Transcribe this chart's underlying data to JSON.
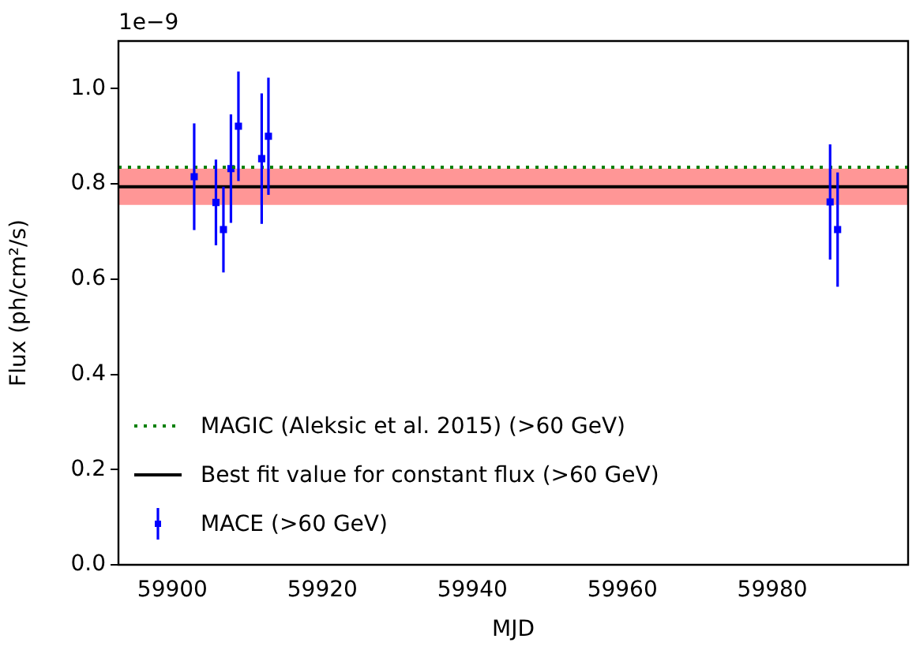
{
  "chart_data": {
    "type": "scatter",
    "xlabel": "MJD",
    "ylabel": "Flux (ph/cm²/s)",
    "xlim": [
      59892.8,
      59998.1
    ],
    "xticks": [
      59900,
      59920,
      59940,
      59960,
      59980
    ],
    "ylim": [
      0,
      1.1
    ],
    "yticks": [
      {
        "value": 0,
        "label": "0.0"
      },
      {
        "value": 0.2,
        "label": "0.2"
      },
      {
        "value": 0.4,
        "label": "0.4"
      },
      {
        "value": 0.6,
        "label": "0.6"
      },
      {
        "value": 0.8,
        "label": "0.8"
      },
      {
        "value": 1.0,
        "label": "1.0"
      }
    ],
    "annotations": [
      "1e−9"
    ],
    "legend": "bottom left",
    "grid": false,
    "bands": [
      {
        "axis": "y",
        "from": 0.756,
        "to": 0.832,
        "color": "#ff9696"
      }
    ],
    "series": [
      {
        "name": "MAGIC (Aleksic et al. 2015) (>60 GeV)",
        "type": "line",
        "color": "#008000",
        "line_style": "dotted",
        "marker": "none",
        "x": [
          59892.8,
          59998.1
        ],
        "values": [
          0.835,
          0.835
        ]
      },
      {
        "name": "Best fit value for constant flux (>60 GeV)",
        "type": "line",
        "color": "#000000",
        "line_style": "solid",
        "marker": "none",
        "x": [
          59892.8,
          59998.1
        ],
        "values": [
          0.794,
          0.794
        ]
      },
      {
        "name": "MACE (>60 GeV)",
        "type": "scatter",
        "color": "#0000ff",
        "marker": "square",
        "x": [
          59902.9,
          59905.8,
          59906.8,
          59907.8,
          59908.8,
          59911.9,
          59912.8,
          59987.7,
          59988.7
        ],
        "values": [
          0.815,
          0.761,
          0.704,
          0.832,
          0.921,
          0.853,
          0.9,
          0.762,
          0.704
        ],
        "errors": [
          0.112,
          0.09,
          0.09,
          0.114,
          0.115,
          0.137,
          0.123,
          0.121,
          0.12
        ]
      }
    ]
  }
}
